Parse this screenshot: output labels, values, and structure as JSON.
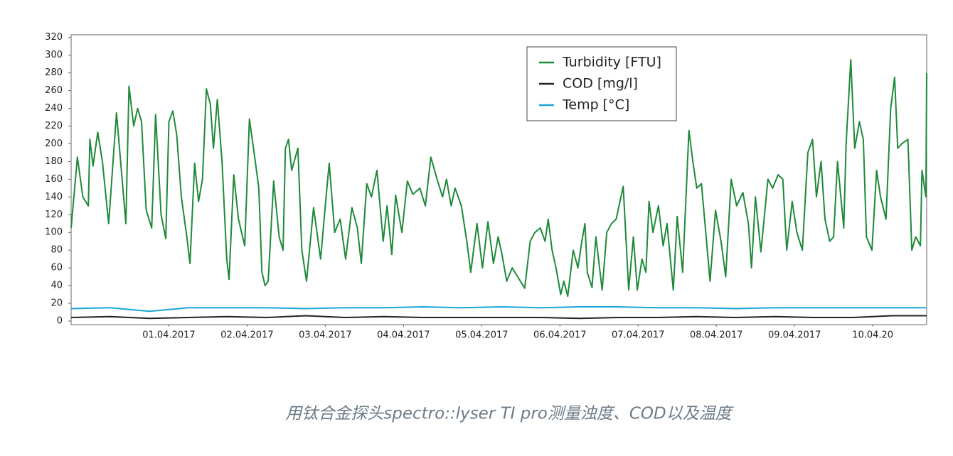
{
  "chart_data": {
    "type": "line",
    "caption": "用钛合金探头spectro::lyser TI pro测量浊度、COD以及温度",
    "xlim": [
      -0.25,
      10.69
    ],
    "ylim": [
      -4,
      323
    ],
    "yticks": [
      0,
      20,
      40,
      60,
      80,
      100,
      120,
      140,
      160,
      180,
      200,
      220,
      240,
      260,
      280,
      300,
      320
    ],
    "xticks": [
      {
        "value": 1,
        "label": "01.04.2017"
      },
      {
        "value": 2,
        "label": "02.04.2017"
      },
      {
        "value": 3,
        "label": "03.04.2017"
      },
      {
        "value": 4,
        "label": "04.04.2017"
      },
      {
        "value": 5,
        "label": "05.04.2017"
      },
      {
        "value": 6,
        "label": "06.04.2017"
      },
      {
        "value": 7,
        "label": "07.04.2017"
      },
      {
        "value": 8,
        "label": "08.04.2017"
      },
      {
        "value": 9,
        "label": "09.04.2017"
      },
      {
        "value": 10,
        "label": "10.04.20"
      }
    ],
    "legend": "upper center",
    "series": [
      {
        "name": "Turbidity [FTU]",
        "color": "#1e8a3a",
        "x": [
          -0.25,
          -0.17,
          -0.1,
          -0.03,
          -0.01,
          0.03,
          0.09,
          0.15,
          0.23,
          0.33,
          0.45,
          0.49,
          0.55,
          0.6,
          0.65,
          0.71,
          0.78,
          0.83,
          0.9,
          0.96,
          1.0,
          1.05,
          1.1,
          1.16,
          1.23,
          1.27,
          1.33,
          1.38,
          1.43,
          1.48,
          1.53,
          1.57,
          1.62,
          1.68,
          1.74,
          1.77,
          1.83,
          1.89,
          1.97,
          2.03,
          2.09,
          2.15,
          2.19,
          2.23,
          2.27,
          2.34,
          2.41,
          2.46,
          2.49,
          2.53,
          2.57,
          2.65,
          2.7,
          2.76,
          2.85,
          2.94,
          3.01,
          3.05,
          3.12,
          3.19,
          3.26,
          3.34,
          3.41,
          3.46,
          3.53,
          3.59,
          3.66,
          3.74,
          3.79,
          3.85,
          3.9,
          3.98,
          4.05,
          4.12,
          4.21,
          4.28,
          4.35,
          4.43,
          4.5,
          4.55,
          4.61,
          4.66,
          4.74,
          4.81,
          4.86,
          4.94,
          5.01,
          5.08,
          5.15,
          5.21,
          5.26,
          5.32,
          5.39,
          5.46,
          5.55,
          5.62,
          5.68,
          5.75,
          5.81,
          5.85,
          5.9,
          5.95,
          6.01,
          6.05,
          6.1,
          6.17,
          6.23,
          6.28,
          6.32,
          6.35,
          6.41,
          6.46,
          6.54,
          6.6,
          6.66,
          6.72,
          6.81,
          6.88,
          6.94,
          6.99,
          7.05,
          7.1,
          7.14,
          7.19,
          7.26,
          7.32,
          7.37,
          7.45,
          7.5,
          7.57,
          7.65,
          7.7,
          7.75,
          7.81,
          7.86,
          7.92,
          7.99,
          8.06,
          8.12,
          8.19,
          8.26,
          8.34,
          8.41,
          8.45,
          8.5,
          8.57,
          8.66,
          8.72,
          8.79,
          8.85,
          8.9,
          8.97,
          9.03,
          9.1,
          9.17,
          9.23,
          9.28,
          9.34,
          9.39,
          9.45,
          9.5,
          9.55,
          9.63,
          9.66,
          9.72,
          9.77,
          9.83,
          9.88,
          9.92,
          9.99,
          10.05,
          10.1,
          10.17,
          10.23,
          10.28,
          10.32,
          10.37,
          10.45,
          10.5,
          10.55,
          10.61,
          10.63,
          10.68,
          10.69
        ],
        "values": [
          105,
          185,
          140,
          130,
          205,
          175,
          213,
          180,
          110,
          235,
          110,
          265,
          220,
          240,
          225,
          125,
          105,
          233,
          120,
          93,
          225,
          237,
          210,
          140,
          95,
          65,
          178,
          135,
          160,
          262,
          245,
          195,
          250,
          180,
          70,
          47,
          165,
          115,
          85,
          228,
          190,
          150,
          55,
          40,
          45,
          158,
          95,
          80,
          195,
          205,
          170,
          195,
          80,
          45,
          128,
          70,
          140,
          178,
          100,
          115,
          70,
          128,
          105,
          65,
          155,
          140,
          170,
          90,
          130,
          75,
          142,
          100,
          158,
          143,
          150,
          130,
          185,
          160,
          140,
          160,
          130,
          150,
          130,
          90,
          55,
          110,
          60,
          112,
          65,
          95,
          75,
          45,
          60,
          50,
          37,
          90,
          100,
          105,
          90,
          115,
          80,
          60,
          30,
          45,
          28,
          80,
          60,
          90,
          110,
          55,
          38,
          95,
          35,
          100,
          110,
          115,
          152,
          35,
          95,
          35,
          70,
          55,
          135,
          100,
          130,
          85,
          110,
          35,
          118,
          55,
          215,
          180,
          150,
          155,
          105,
          45,
          125,
          90,
          50,
          160,
          130,
          145,
          110,
          60,
          140,
          78,
          160,
          150,
          165,
          160,
          80,
          135,
          100,
          80,
          190,
          205,
          140,
          180,
          115,
          90,
          95,
          180,
          105,
          200,
          295,
          195,
          225,
          205,
          95,
          80,
          170,
          140,
          115,
          240,
          275,
          195,
          200,
          205,
          80,
          95,
          85,
          170,
          140,
          280
        ]
      },
      {
        "name": "COD [mg/l]",
        "color": "#222222",
        "x": [
          -0.25,
          0.25,
          0.75,
          1.25,
          1.75,
          2.25,
          2.75,
          3.25,
          3.75,
          4.25,
          4.75,
          5.25,
          5.75,
          6.25,
          6.75,
          7.25,
          7.75,
          8.25,
          8.75,
          9.25,
          9.75,
          10.25,
          10.69
        ],
        "values": [
          4,
          5,
          3,
          4,
          5,
          4,
          6,
          4,
          5,
          4,
          4,
          4,
          4,
          3,
          4,
          4,
          5,
          4,
          5,
          4,
          4,
          6,
          6
        ]
      },
      {
        "name": "Temp [°C]",
        "color": "#1aa6d8",
        "x": [
          -0.25,
          0.25,
          0.75,
          1.25,
          1.75,
          2.25,
          2.75,
          3.25,
          3.75,
          4.25,
          4.75,
          5.25,
          5.75,
          6.25,
          6.75,
          7.25,
          7.75,
          8.25,
          8.75,
          9.25,
          9.75,
          10.25,
          10.69
        ],
        "values": [
          14,
          15,
          11,
          15,
          15,
          15,
          14,
          15,
          15,
          16,
          15,
          16,
          15,
          16,
          16,
          15,
          15,
          14,
          15,
          15,
          15,
          15,
          15
        ]
      }
    ]
  }
}
